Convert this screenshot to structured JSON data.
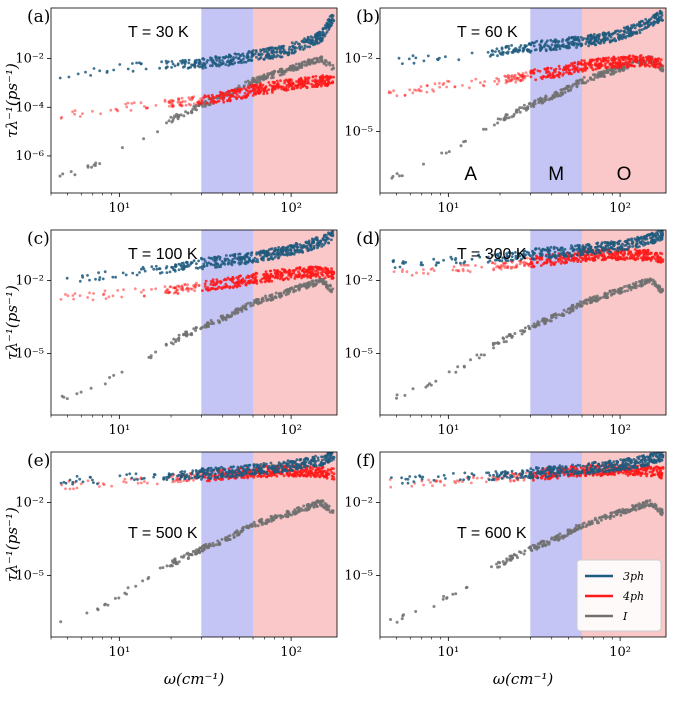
{
  "chart_data": {
    "type": "scatter",
    "x_axis": {
      "label": "ω(cm⁻¹)",
      "scale": "log",
      "xlim": [
        4,
        185
      ],
      "tick_values": [
        10,
        100
      ],
      "tick_labels": [
        "10¹",
        "10²"
      ]
    },
    "y_axis": {
      "label": "τλ⁻¹(ps⁻¹)",
      "scale": "log"
    },
    "regions": [
      {
        "label": "A",
        "range": [
          4,
          30
        ],
        "color": "#ffffff"
      },
      {
        "label": "M",
        "range": [
          30,
          60
        ],
        "color": "#c4c4f5"
      },
      {
        "label": "O",
        "range": [
          60,
          185
        ],
        "color": "#fac8c8"
      }
    ],
    "legend": {
      "placement": "lower-right of panel (f)",
      "entries": [
        "3ph",
        "4ph",
        "I"
      ]
    },
    "series_colors": {
      "3ph": "#1f5b7e",
      "4ph": "#ff1a1a",
      "I": "#707070"
    },
    "panels": [
      {
        "label": "(a)",
        "temperature": "T = 30 K",
        "ylim": [
          3e-08,
          1.2
        ],
        "yticks": [
          1e-06,
          0.0001,
          0.01
        ],
        "ytick_labels": [
          "10⁻⁶",
          "10⁻⁴",
          "10⁻²"
        ],
        "series": [
          {
            "name": "3ph",
            "x": [
              5,
              8,
              10,
              20,
              30,
              45,
              60,
              90,
              120,
              150,
              175
            ],
            "y": [
              0.002,
              0.003,
              0.004,
              0.006,
              0.006,
              0.009,
              0.013,
              0.02,
              0.04,
              0.08,
              0.5
            ]
          },
          {
            "name": "4ph",
            "x": [
              5,
              8,
              10,
              20,
              30,
              45,
              60,
              90,
              120,
              150,
              175
            ],
            "y": [
              5e-05,
              8e-05,
              0.0001,
              0.00015,
              0.0002,
              0.0003,
              0.0005,
              0.0008,
              0.001,
              0.0012,
              0.0013
            ]
          },
          {
            "name": "I",
            "x": [
              5,
              8,
              10,
              15,
              20,
              30,
              45,
              60,
              90,
              120,
              150,
              175
            ],
            "y": [
              1.5e-07,
              6e-07,
              1.5e-06,
              8e-06,
              3e-05,
              0.00012,
              0.0004,
              0.0012,
              0.003,
              0.006,
              0.01,
              0.004
            ]
          }
        ]
      },
      {
        "label": "(b)",
        "temperature": "T = 60 K",
        "ylim": [
          3e-08,
          1.2
        ],
        "yticks": [
          1e-05,
          0.01
        ],
        "ytick_labels": [
          "10⁻⁵",
          "10⁻²"
        ],
        "region_labels": true,
        "series": [
          {
            "name": "3ph",
            "x": [
              5,
              8,
              10,
              20,
              30,
              45,
              60,
              90,
              120,
              150,
              175
            ],
            "y": [
              0.008,
              0.01,
              0.012,
              0.02,
              0.03,
              0.04,
              0.05,
              0.08,
              0.15,
              0.3,
              0.6
            ]
          },
          {
            "name": "4ph",
            "x": [
              5,
              8,
              10,
              20,
              30,
              45,
              60,
              90,
              120,
              150,
              175
            ],
            "y": [
              0.0004,
              0.0006,
              0.0008,
              0.0012,
              0.002,
              0.003,
              0.005,
              0.007,
              0.008,
              0.008,
              0.006
            ]
          },
          {
            "name": "I",
            "x": [
              5,
              8,
              10,
              15,
              20,
              30,
              45,
              60,
              90,
              120,
              150,
              175
            ],
            "y": [
              1.5e-07,
              6e-07,
              1.5e-06,
              8e-06,
              3e-05,
              0.00012,
              0.0004,
              0.0012,
              0.003,
              0.006,
              0.01,
              0.004
            ]
          }
        ]
      },
      {
        "label": "(c)",
        "temperature": "T = 100 K",
        "ylim": [
          3e-08,
          1.2
        ],
        "yticks": [
          1e-05,
          0.01
        ],
        "ytick_labels": [
          "10⁻⁵",
          "10⁻²"
        ],
        "series": [
          {
            "name": "3ph",
            "x": [
              5,
              8,
              10,
              20,
              30,
              45,
              60,
              90,
              120,
              150,
              175
            ],
            "y": [
              0.012,
              0.015,
              0.02,
              0.03,
              0.05,
              0.07,
              0.09,
              0.15,
              0.25,
              0.4,
              0.7
            ]
          },
          {
            "name": "4ph",
            "x": [
              5,
              8,
              10,
              20,
              30,
              45,
              60,
              90,
              120,
              150,
              175
            ],
            "y": [
              0.002,
              0.0025,
              0.003,
              0.004,
              0.006,
              0.008,
              0.012,
              0.018,
              0.022,
              0.022,
              0.018
            ]
          },
          {
            "name": "I",
            "x": [
              5,
              8,
              10,
              15,
              20,
              30,
              45,
              60,
              90,
              120,
              150,
              175
            ],
            "y": [
              1.5e-07,
              6e-07,
              1.5e-06,
              8e-06,
              3e-05,
              0.00012,
              0.0004,
              0.0012,
              0.003,
              0.006,
              0.01,
              0.004
            ]
          }
        ]
      },
      {
        "label": "(d)",
        "temperature": "T = 300 K",
        "ylim": [
          3e-08,
          1.2
        ],
        "yticks": [
          1e-05,
          0.01
        ],
        "ytick_labels": [
          "10⁻⁵",
          "10⁻²"
        ],
        "series": [
          {
            "name": "3ph",
            "x": [
              5,
              8,
              10,
              20,
              30,
              45,
              60,
              90,
              120,
              150,
              175
            ],
            "y": [
              0.05,
              0.06,
              0.07,
              0.09,
              0.12,
              0.15,
              0.18,
              0.25,
              0.35,
              0.5,
              0.8
            ]
          },
          {
            "name": "4ph",
            "x": [
              5,
              8,
              10,
              20,
              30,
              45,
              60,
              90,
              120,
              150,
              175
            ],
            "y": [
              0.02,
              0.025,
              0.03,
              0.04,
              0.06,
              0.08,
              0.1,
              0.12,
              0.12,
              0.11,
              0.09
            ]
          },
          {
            "name": "I",
            "x": [
              5,
              8,
              10,
              15,
              20,
              30,
              45,
              60,
              90,
              120,
              150,
              175
            ],
            "y": [
              1.5e-07,
              6e-07,
              1.5e-06,
              8e-06,
              3e-05,
              0.00012,
              0.0004,
              0.0012,
              0.003,
              0.006,
              0.01,
              0.004
            ]
          }
        ]
      },
      {
        "label": "(e)",
        "temperature": "T = 500 K",
        "ylim": [
          3e-08,
          1.2
        ],
        "yticks": [
          1e-05,
          0.01
        ],
        "ytick_labels": [
          "10⁻⁵",
          "10⁻²"
        ],
        "series": [
          {
            "name": "3ph",
            "x": [
              5,
              8,
              10,
              20,
              30,
              45,
              60,
              90,
              120,
              150,
              175
            ],
            "y": [
              0.08,
              0.09,
              0.1,
              0.12,
              0.15,
              0.18,
              0.22,
              0.3,
              0.4,
              0.55,
              0.85
            ]
          },
          {
            "name": "4ph",
            "x": [
              5,
              8,
              10,
              20,
              30,
              45,
              60,
              90,
              120,
              150,
              175
            ],
            "y": [
              0.05,
              0.06,
              0.07,
              0.09,
              0.12,
              0.15,
              0.18,
              0.2,
              0.2,
              0.18,
              0.15
            ]
          },
          {
            "name": "I",
            "x": [
              5,
              8,
              10,
              15,
              20,
              30,
              45,
              60,
              90,
              120,
              150,
              175
            ],
            "y": [
              1.5e-07,
              6e-07,
              1.5e-06,
              8e-06,
              3e-05,
              0.00012,
              0.0004,
              0.0012,
              0.003,
              0.006,
              0.01,
              0.004
            ]
          }
        ]
      },
      {
        "label": "(f)",
        "temperature": "T = 600 K",
        "ylim": [
          3e-08,
          1.2
        ],
        "yticks": [
          1e-05,
          0.01
        ],
        "ytick_labels": [
          "10⁻⁵",
          "10⁻²"
        ],
        "series": [
          {
            "name": "3ph",
            "x": [
              5,
              8,
              10,
              20,
              30,
              45,
              60,
              90,
              120,
              150,
              175
            ],
            "y": [
              0.09,
              0.1,
              0.11,
              0.13,
              0.16,
              0.2,
              0.24,
              0.32,
              0.42,
              0.6,
              0.9
            ]
          },
          {
            "name": "4ph",
            "x": [
              5,
              8,
              10,
              20,
              30,
              45,
              60,
              90,
              120,
              150,
              175
            ],
            "y": [
              0.06,
              0.07,
              0.08,
              0.1,
              0.13,
              0.17,
              0.2,
              0.22,
              0.22,
              0.2,
              0.17
            ]
          },
          {
            "name": "I",
            "x": [
              5,
              8,
              10,
              15,
              20,
              30,
              45,
              60,
              90,
              120,
              150,
              175
            ],
            "y": [
              1.5e-07,
              6e-07,
              1.5e-06,
              8e-06,
              3e-05,
              0.00012,
              0.0004,
              0.0012,
              0.003,
              0.006,
              0.01,
              0.004
            ]
          }
        ]
      }
    ]
  }
}
